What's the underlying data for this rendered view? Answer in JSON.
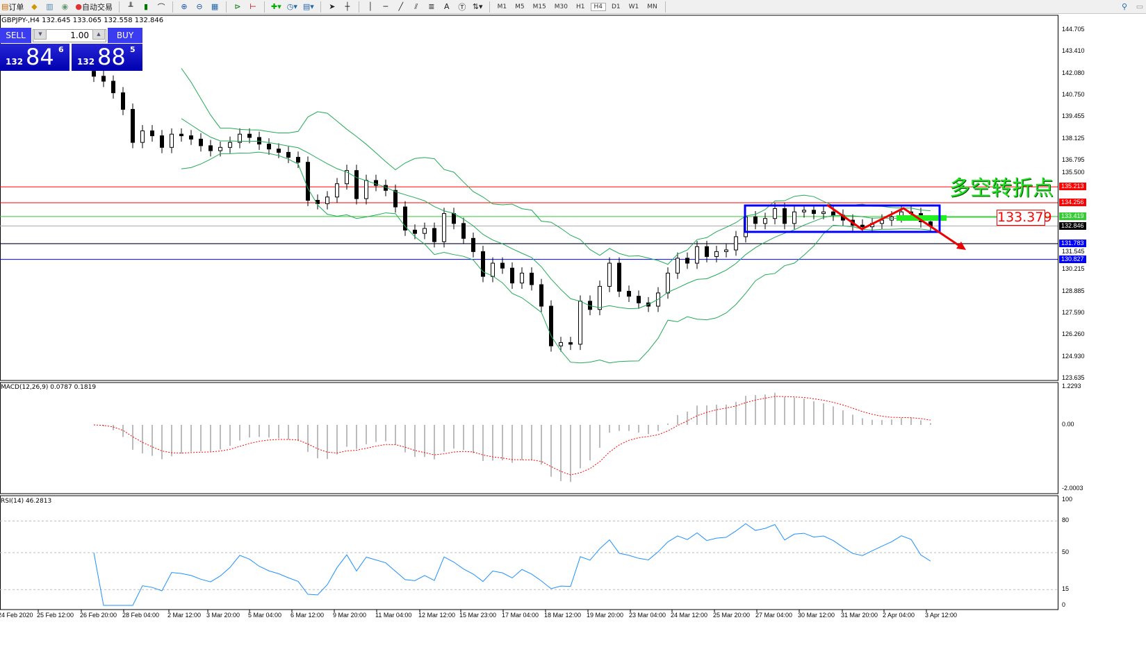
{
  "toolbar": {
    "items": [
      {
        "label": "订单",
        "icon": "new-order-icon"
      },
      {
        "label": "",
        "icon": "history-icon"
      },
      {
        "label": "",
        "icon": "meta-editor-icon"
      },
      {
        "label": "",
        "icon": "signal-icon"
      },
      {
        "label": "自动交易",
        "icon": "auto-trading-icon"
      }
    ],
    "chart_tools": [
      "bar-chart-icon",
      "candlestick-icon",
      "line-chart-icon",
      "zoom-in-icon",
      "zoom-out-icon",
      "tile-windows-icon",
      "auto-scroll-icon",
      "chart-shift-icon",
      "indicators-icon",
      "periods-icon",
      "templates-icon",
      "cursor-icon",
      "crosshair-icon",
      "vertical-line-icon",
      "horizontal-line-icon",
      "trendline-icon",
      "fibo-fan-icon",
      "fibo-retracement-icon",
      "text-icon",
      "text-label-icon",
      "arrows-icon"
    ],
    "text_tool": "A",
    "periods": [
      "M1",
      "M5",
      "M15",
      "M30",
      "H1",
      "H4",
      "D1",
      "W1",
      "MN"
    ],
    "active_period": "H4"
  },
  "symbol_info": "GBPJPY-,H4  132.645 133.065 132.558 132.846",
  "trade_panel": {
    "sell_label": "SELL",
    "buy_label": "BUY",
    "lot": "1.00",
    "sell_big": "132",
    "sell_main": "84",
    "sell_pip": "6",
    "buy_big": "132",
    "buy_main": "88",
    "buy_pip": "5"
  },
  "annotation_text": "多空转折点",
  "price_box": "133.379",
  "colors": {
    "bull_band": "#22aa55",
    "level_red": "#ff0000",
    "level_green": "#33cc33",
    "level_blue": "#0000ff",
    "macd_signal": "#ff0000",
    "rsi": "#1e90ff",
    "trade_blue": "#3b3bf0"
  },
  "price_axis": [
    "144.705",
    "143.410",
    "142.080",
    "140.750",
    "139.455",
    "138.125",
    "136.795",
    "135.500",
    "131.545",
    "130.215",
    "128.885",
    "127.590",
    "126.260",
    "124.930",
    "123.635"
  ],
  "levels": [
    {
      "price": "135.213",
      "color": "#ff0000"
    },
    {
      "price": "134.256",
      "color": "#ff0000"
    },
    {
      "price": "133.419",
      "color": "#33cc33"
    },
    {
      "price": "132.846",
      "color": "#000000"
    },
    {
      "price": "131.783",
      "color": "#0000ff"
    },
    {
      "price": "130.827",
      "color": "#0000ff"
    }
  ],
  "macd": {
    "label": "MACD(12,26,9) 0.0787 0.1819",
    "axis": [
      "1.2293",
      "0.00",
      "-2.0003"
    ]
  },
  "rsi": {
    "label": "RSI(14) 46.2813",
    "axis": [
      "100",
      "80",
      "50",
      "15",
      "0"
    ]
  },
  "time_axis": [
    "24 Feb 2020",
    "25 Feb 12:00",
    "26 Feb 20:00",
    "28 Feb 04:00",
    "2 Mar 12:00",
    "3 Mar 20:00",
    "5 Mar 04:00",
    "6 Mar 12:00",
    "9 Mar 20:00",
    "11 Mar 04:00",
    "12 Mar 12:00",
    "15 Mar 23:00",
    "17 Mar 04:00",
    "18 Mar 12:00",
    "19 Mar 20:00",
    "23 Mar 04:00",
    "24 Mar 12:00",
    "25 Mar 20:00",
    "27 Mar 04:00",
    "30 Mar 12:00",
    "31 Mar 20:00",
    "2 Apr 04:00",
    "3 Apr 12:00"
  ],
  "chart_data": {
    "type": "candlestick",
    "ylim": [
      123.635,
      144.705
    ],
    "closes": [
      141.9,
      141.6,
      140.9,
      139.9,
      137.9,
      138.6,
      138.3,
      137.6,
      138.4,
      138.3,
      138.1,
      137.7,
      137.4,
      137.6,
      137.9,
      138.4,
      138.2,
      137.8,
      137.5,
      137.3,
      137.0,
      136.7,
      134.4,
      134.2,
      134.6,
      135.4,
      136.2,
      134.5,
      135.6,
      135.3,
      135.0,
      134.0,
      132.6,
      132.4,
      132.7,
      131.9,
      133.6,
      133.0,
      132.1,
      131.3,
      129.8,
      130.6,
      130.3,
      129.4,
      130.0,
      129.3,
      128.0,
      125.6,
      125.8,
      125.7,
      128.3,
      127.8,
      129.2,
      130.6,
      128.9,
      128.6,
      128.2,
      128.0,
      128.8,
      130.0,
      130.9,
      130.6,
      131.6,
      131.0,
      131.3,
      131.4,
      132.2,
      133.4,
      133.0,
      133.3,
      133.9,
      133.0,
      133.7,
      133.8,
      133.6,
      133.7,
      133.5,
      133.2,
      132.9,
      132.8,
      133.0,
      133.2,
      133.4,
      133.7,
      133.6,
      133.1,
      132.846
    ]
  }
}
